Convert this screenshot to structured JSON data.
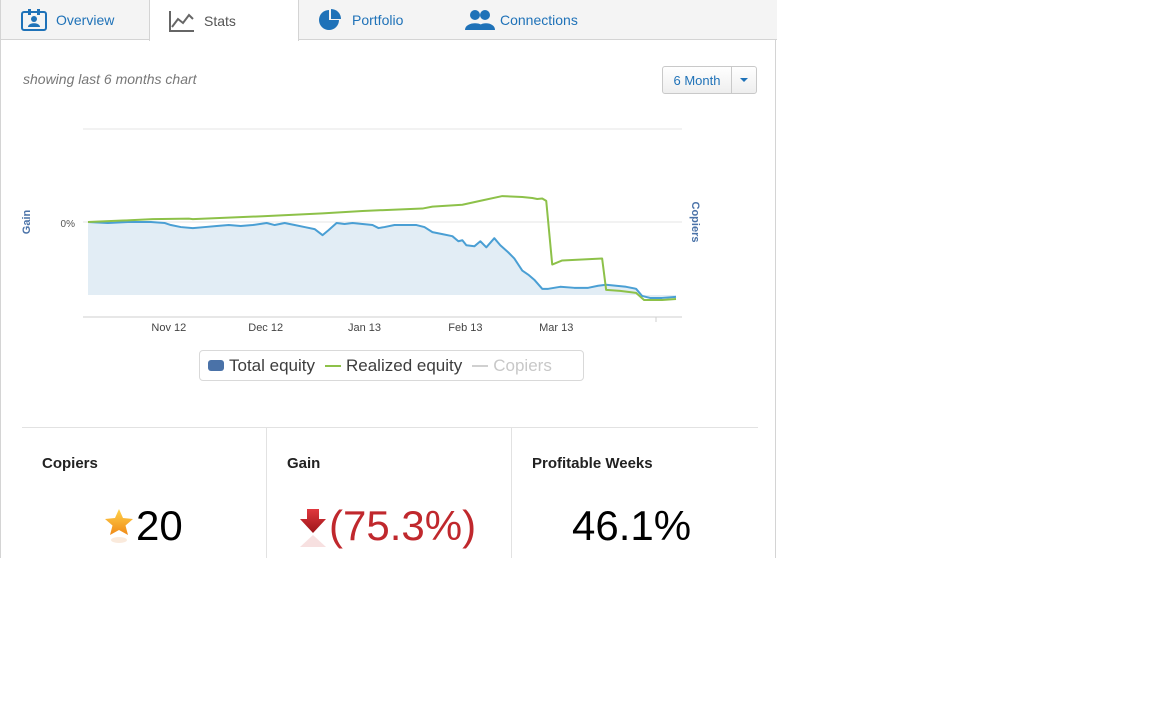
{
  "tabs": [
    {
      "label": "Overview",
      "icon": "profile-card-icon"
    },
    {
      "label": "Stats",
      "icon": "line-chart-icon"
    },
    {
      "label": "Portfolio",
      "icon": "pie-chart-icon"
    },
    {
      "label": "Connections",
      "icon": "people-icon"
    }
  ],
  "active_tab": "Stats",
  "subtitle": "showing last 6 months chart",
  "period_select": {
    "value": "6 Month"
  },
  "chart_data": {
    "type": "area",
    "x_ticks": [
      "Nov 12",
      "Dec 12",
      "Jan 13",
      "Feb 13",
      "Mar 13"
    ],
    "y_ticks": [
      "0%"
    ],
    "ylabel_left": "Gain",
    "ylabel_right": "Copiers",
    "x_domain": [
      0,
      600
    ],
    "x_ticks_at": [
      86,
      183,
      282,
      383,
      474
    ],
    "ylim": [
      -80,
      100
    ],
    "series": [
      {
        "name": "Total equity",
        "color": "#4a9fd4",
        "fill": "#e2edf5",
        "points": [
          [
            5,
            0
          ],
          [
            25,
            -1
          ],
          [
            45,
            0
          ],
          [
            57,
            0
          ],
          [
            68,
            0
          ],
          [
            82,
            -1
          ],
          [
            88,
            -3
          ],
          [
            98,
            -5
          ],
          [
            110,
            -6
          ],
          [
            122,
            -5
          ],
          [
            134,
            -4
          ],
          [
            146,
            -3
          ],
          [
            158,
            -4
          ],
          [
            170,
            -3
          ],
          [
            184,
            -1
          ],
          [
            192,
            -3
          ],
          [
            202,
            -1
          ],
          [
            212,
            -3
          ],
          [
            222,
            -5
          ],
          [
            232,
            -7
          ],
          [
            240,
            -13
          ],
          [
            246,
            -8
          ],
          [
            254,
            -1
          ],
          [
            262,
            -2
          ],
          [
            270,
            -1
          ],
          [
            280,
            -2
          ],
          [
            290,
            -3
          ],
          [
            296,
            -6
          ],
          [
            302,
            -5
          ],
          [
            312,
            -3
          ],
          [
            322,
            -3
          ],
          [
            334,
            -3
          ],
          [
            342,
            -5
          ],
          [
            350,
            -10
          ],
          [
            360,
            -12
          ],
          [
            370,
            -14
          ],
          [
            376,
            -19
          ],
          [
            380,
            -18
          ],
          [
            384,
            -23
          ],
          [
            392,
            -24
          ],
          [
            398,
            -19
          ],
          [
            404,
            -25
          ],
          [
            412,
            -16
          ],
          [
            418,
            -23
          ],
          [
            426,
            -30
          ],
          [
            432,
            -36
          ],
          [
            440,
            -48
          ],
          [
            446,
            -52
          ],
          [
            452,
            -57
          ],
          [
            460,
            -66
          ],
          [
            466,
            -66
          ],
          [
            478,
            -64
          ],
          [
            492,
            -65
          ],
          [
            506,
            -65
          ],
          [
            516,
            -63
          ],
          [
            524,
            -62
          ],
          [
            534,
            -63
          ],
          [
            544,
            -64
          ],
          [
            554,
            -66
          ],
          [
            560,
            -73
          ],
          [
            568,
            -75
          ],
          [
            580,
            -75
          ],
          [
            594,
            -74
          ]
        ]
      },
      {
        "name": "Realized equity",
        "color": "#8dc149",
        "points": [
          [
            5,
            0
          ],
          [
            40,
            3
          ],
          [
            70,
            6
          ],
          [
            106,
            7
          ],
          [
            110,
            6
          ],
          [
            180,
            12
          ],
          [
            240,
            18
          ],
          [
            280,
            23
          ],
          [
            340,
            28
          ],
          [
            350,
            32
          ],
          [
            380,
            36
          ],
          [
            400,
            45
          ],
          [
            420,
            54
          ],
          [
            440,
            52
          ],
          [
            450,
            50
          ],
          [
            455,
            48
          ],
          [
            460,
            49
          ],
          [
            464,
            44
          ],
          [
            470,
            -42
          ],
          [
            480,
            -38
          ],
          [
            500,
            -37
          ],
          [
            520,
            -36
          ],
          [
            524,
            -67
          ],
          [
            538,
            -68
          ],
          [
            554,
            -70
          ],
          [
            562,
            -77
          ],
          [
            580,
            -77
          ],
          [
            594,
            -76
          ]
        ]
      },
      {
        "name": "Copiers",
        "color": "#cccccc",
        "points": []
      }
    ]
  },
  "legend": [
    "Total equity",
    "Realized equity",
    "Copiers"
  ],
  "stats": [
    {
      "title": "Copiers",
      "value": "20",
      "icon": "star-icon",
      "color": "#000000"
    },
    {
      "title": "Gain",
      "value": "(75.3%)",
      "icon": "down-arrow-icon",
      "color": "#c0282d"
    },
    {
      "title": "Profitable Weeks",
      "value": "46.1%",
      "color": "#000000"
    }
  ]
}
